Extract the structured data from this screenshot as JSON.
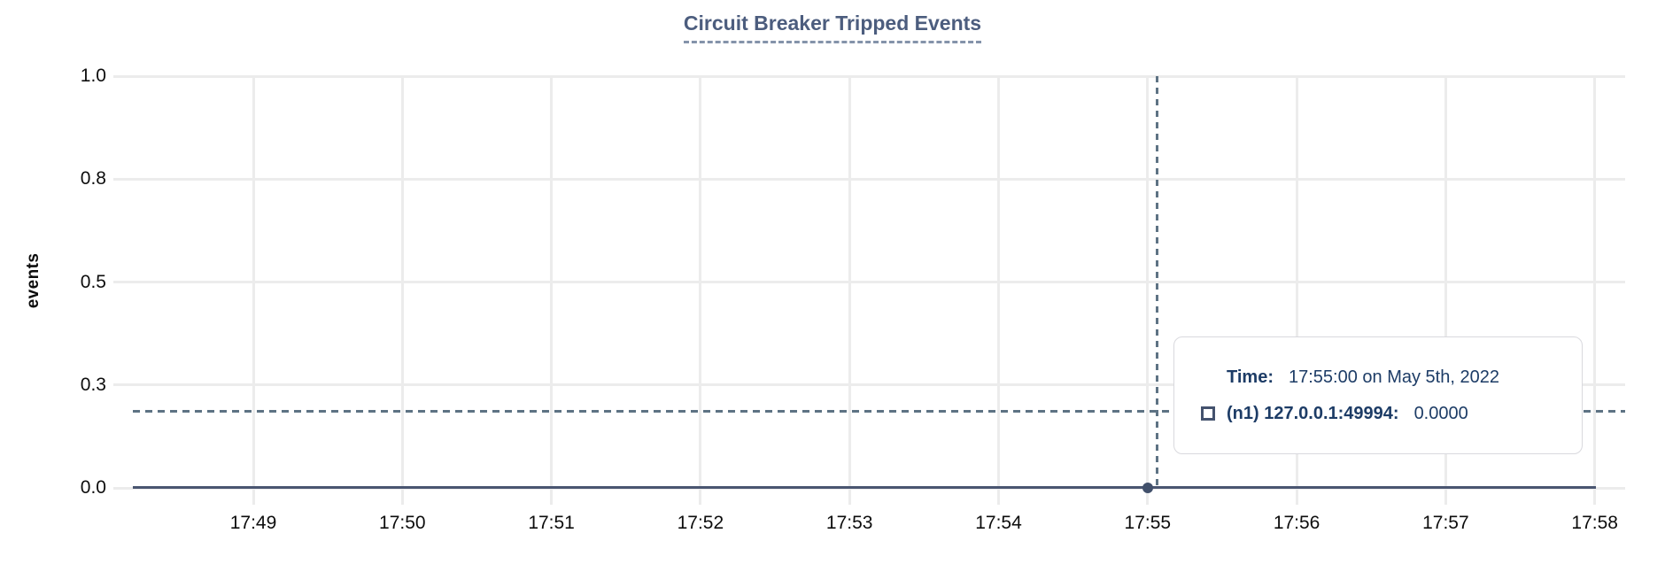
{
  "title": "Circuit Breaker Tripped Events",
  "y_axis_title": "events",
  "tooltip": {
    "time_label": "Time:",
    "time_value": "17:55:00 on May 5th, 2022",
    "series_label": "(n1) 127.0.0.1:49994:",
    "series_value": "0.0000",
    "marker_icon": "square-outline"
  },
  "colors": {
    "series": "#4a5671",
    "cursor_crosshair": "#5e7384",
    "title": "#4c5d7e",
    "tooltip_text": "#1d3c66",
    "grid": "#ececec",
    "tick_text": "#0d0d0d",
    "background": "#ffffff"
  },
  "chart_data": {
    "type": "line",
    "title": "Circuit Breaker Tripped Events",
    "xlabel": "",
    "ylabel": "events",
    "x_tick_labels": [
      "17:49",
      "17:50",
      "17:51",
      "17:52",
      "17:53",
      "17:54",
      "17:55",
      "17:56",
      "17:57",
      "17:58"
    ],
    "y_tick_labels": [
      "1.0",
      "0.8",
      "0.5",
      "0.3",
      "0.0"
    ],
    "y_tick_values": [
      1.0,
      0.75,
      0.5,
      0.25,
      0.0
    ],
    "ylim": [
      0,
      1
    ],
    "grid": true,
    "legend_position": "floating-tooltip",
    "series": [
      {
        "name": "(n1) 127.0.0.1:49994",
        "color": "#4a5671",
        "x": [
          "17:49",
          "17:50",
          "17:51",
          "17:52",
          "17:53",
          "17:54",
          "17:55",
          "17:56",
          "17:57",
          "17:58"
        ],
        "values": [
          0,
          0,
          0,
          0,
          0,
          0,
          0,
          0,
          0,
          0
        ]
      }
    ],
    "cursor": {
      "crosshair": true,
      "time": "17:55:00 on May 5th, 2022",
      "snapped_point": {
        "x": "17:55",
        "y": 0.0
      },
      "displayed_value": "0.0000"
    }
  }
}
